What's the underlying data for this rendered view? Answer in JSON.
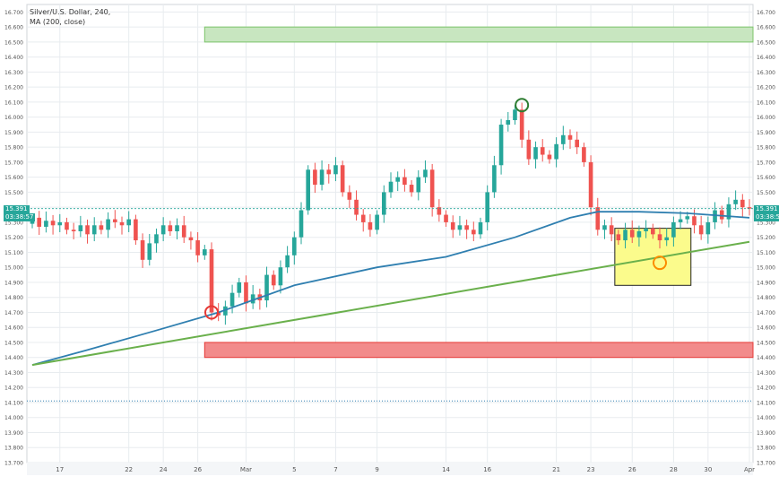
{
  "legend": {
    "symbol": "Silver/U.S. Dollar, 240,",
    "indicator": "MA (200, close)"
  },
  "badges": {
    "last_price": "15.391",
    "countdown": "03:38:57"
  },
  "colors": {
    "up": "#26a69a",
    "down": "#ef5350",
    "ma": "#2f7fb0",
    "trendline": "#6ab04c",
    "resistance_zone": "#c8e6c0",
    "support_zone": "#f28b8b",
    "highlight_box": "#fbfb8c",
    "grid": "#e8ecef",
    "axis_text": "#555555"
  },
  "chart_data": {
    "type": "candlestick",
    "title": "",
    "ylim": [
      13.7,
      16.75
    ],
    "yticks": [
      "16.700",
      "16.600",
      "16.500",
      "16.400",
      "16.300",
      "16.200",
      "16.100",
      "16.000",
      "15.900",
      "15.800",
      "15.700",
      "15.600",
      "15.500",
      "15.400",
      "15.300",
      "15.200",
      "15.100",
      "15.000",
      "14.900",
      "14.800",
      "14.700",
      "14.600",
      "14.500",
      "14.400",
      "14.300",
      "14.200",
      "14.100",
      "14.000",
      "13.900",
      "13.800",
      "13.700"
    ],
    "xticks": [
      {
        "label": "17",
        "bar": 4
      },
      {
        "label": "22",
        "bar": 14
      },
      {
        "label": "24",
        "bar": 19
      },
      {
        "label": "26",
        "bar": 24
      },
      {
        "label": "Mar",
        "bar": 31
      },
      {
        "label": "5",
        "bar": 38
      },
      {
        "label": "7",
        "bar": 44
      },
      {
        "label": "9",
        "bar": 50
      },
      {
        "label": "14",
        "bar": 60
      },
      {
        "label": "16",
        "bar": 66
      },
      {
        "label": "21",
        "bar": 76
      },
      {
        "label": "23",
        "bar": 81
      },
      {
        "label": "26",
        "bar": 87
      },
      {
        "label": "28",
        "bar": 93
      },
      {
        "label": "30",
        "bar": 98
      },
      {
        "label": "Apr",
        "bar": 104
      }
    ],
    "series": {
      "close": [
        15.33,
        15.27,
        15.31,
        15.28,
        15.3,
        15.25,
        15.24,
        15.28,
        15.22,
        15.28,
        15.25,
        15.32,
        15.3,
        15.28,
        15.32,
        15.18,
        15.05,
        15.16,
        15.22,
        15.28,
        15.24,
        15.28,
        15.2,
        15.18,
        15.08,
        15.12,
        14.7,
        14.68,
        14.74,
        14.83,
        14.9,
        14.76,
        14.82,
        14.78,
        14.95,
        14.88,
        15.0,
        15.08,
        15.2,
        15.38,
        15.65,
        15.55,
        15.65,
        15.62,
        15.68,
        15.5,
        15.45,
        15.35,
        15.3,
        15.25,
        15.35,
        15.5,
        15.57,
        15.6,
        15.55,
        15.5,
        15.6,
        15.65,
        15.4,
        15.35,
        15.3,
        15.25,
        15.28,
        15.25,
        15.22,
        15.3,
        15.5,
        15.68,
        15.95,
        15.98,
        16.05,
        15.85,
        15.72,
        15.8,
        15.75,
        15.72,
        15.82,
        15.88,
        15.85,
        15.8,
        15.7,
        15.4,
        15.25,
        15.28,
        15.22,
        15.18,
        15.25,
        15.2,
        15.24,
        15.26,
        15.22,
        15.18,
        15.2,
        15.3,
        15.32,
        15.34,
        15.28,
        15.22,
        15.3,
        15.38,
        15.32,
        15.42,
        15.45,
        15.4,
        15.391
      ],
      "ma200": [
        [
          0,
          14.35
        ],
        [
          8,
          14.45
        ],
        [
          18,
          14.58
        ],
        [
          27,
          14.7
        ],
        [
          38,
          14.88
        ],
        [
          50,
          15.0
        ],
        [
          60,
          15.07
        ],
        [
          70,
          15.2
        ],
        [
          78,
          15.33
        ],
        [
          82,
          15.37
        ],
        [
          88,
          15.37
        ],
        [
          95,
          15.36
        ],
        [
          104,
          15.33
        ]
      ],
      "trendline": [
        [
          0,
          14.35
        ],
        [
          104,
          15.17
        ]
      ]
    },
    "annotations": {
      "resistance_zone": {
        "from_bar": 25,
        "to_bar": 105,
        "y": [
          16.5,
          16.6
        ]
      },
      "support_zone": {
        "from_bar": 25,
        "to_bar": 105,
        "y": [
          14.4,
          14.5
        ]
      },
      "highlight_box": {
        "from_bar": 85,
        "to_bar": 95,
        "y": [
          14.88,
          15.26
        ]
      },
      "circles": [
        {
          "bar": 26,
          "price": 14.7,
          "color": "#e53935"
        },
        {
          "bar": 71,
          "price": 16.08,
          "color": "#2e7d32"
        },
        {
          "bar": 91,
          "price": 15.03,
          "color": "#fb8c00"
        }
      ],
      "dotted_line_price": 14.11
    }
  }
}
